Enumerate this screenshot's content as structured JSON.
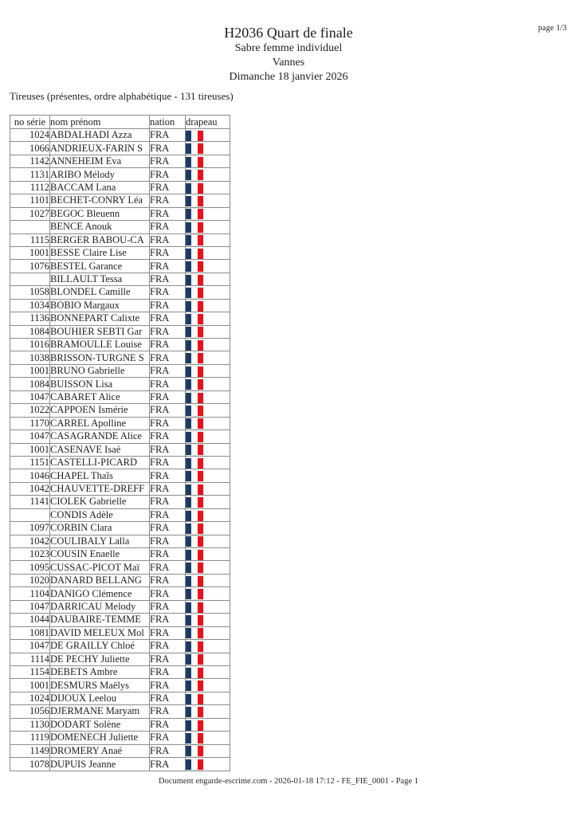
{
  "page": {
    "title": "H2036 Quart de finale",
    "subtitle_event": "Sabre femme individuel",
    "subtitle_location": "Vannes",
    "subtitle_date": "Dimanche 18 janvier 2026",
    "page_indicator": "page 1/3",
    "list_caption": "Tireuses (présentes, ordre alphabétique - 131 tireuses)",
    "footer": "Document engarde-escrime.com - 2026-01-18 17:12  - FE_FIE_0001 - Page 1"
  },
  "flag": {
    "label": "france-flag",
    "blue": "#1f3a60",
    "white": "#ffffff",
    "red": "#e0151f"
  },
  "table": {
    "headers": [
      "no série",
      "nom prénom",
      "nation",
      "drapeau"
    ],
    "rows": [
      {
        "serie": "1024",
        "name": "ABDALHADI Azza",
        "nation": "FRA"
      },
      {
        "serie": "1066",
        "name": "ANDRIEUX-FARIN S",
        "nation": "FRA"
      },
      {
        "serie": "1142",
        "name": "ANNEHEIM Eva",
        "nation": "FRA"
      },
      {
        "serie": "1131",
        "name": "ARIBO Mélody",
        "nation": "FRA"
      },
      {
        "serie": "1112",
        "name": "BACCAM Lana",
        "nation": "FRA"
      },
      {
        "serie": "1101",
        "name": "BECHET-CONRY Léa",
        "nation": "FRA"
      },
      {
        "serie": "1027",
        "name": "BEGOC Bleuenn",
        "nation": "FRA"
      },
      {
        "serie": "",
        "name": "BENCE Anouk",
        "nation": "FRA"
      },
      {
        "serie": "1115",
        "name": "BERGER BABOU-CA",
        "nation": "FRA"
      },
      {
        "serie": "1001",
        "name": "BESSE Claire Lise",
        "nation": "FRA"
      },
      {
        "serie": "1076",
        "name": "BESTEL Garance",
        "nation": "FRA"
      },
      {
        "serie": "",
        "name": "BILLAULT Tessa",
        "nation": "FRA"
      },
      {
        "serie": "1058",
        "name": "BLONDEL Camille",
        "nation": "FRA"
      },
      {
        "serie": "1034",
        "name": "BOBIO Margaux",
        "nation": "FRA"
      },
      {
        "serie": "1136",
        "name": "BONNEPART Calixte",
        "nation": "FRA"
      },
      {
        "serie": "1084",
        "name": "BOUHIER SEBTI Gar",
        "nation": "FRA"
      },
      {
        "serie": "1016",
        "name": "BRAMOULLE Louise",
        "nation": "FRA"
      },
      {
        "serie": "1038",
        "name": "BRISSON-TURGNE S",
        "nation": "FRA"
      },
      {
        "serie": "1001",
        "name": "BRUNO Gabrielle",
        "nation": "FRA"
      },
      {
        "serie": "1084",
        "name": "BUISSON Lisa",
        "nation": "FRA"
      },
      {
        "serie": "1047",
        "name": "CABARET Alice",
        "nation": "FRA"
      },
      {
        "serie": "1022",
        "name": "CAPPOEN Ismérie",
        "nation": "FRA"
      },
      {
        "serie": "1170",
        "name": "CARREL Apolline",
        "nation": "FRA"
      },
      {
        "serie": "1047",
        "name": "CASAGRANDE Alice",
        "nation": "FRA"
      },
      {
        "serie": "1001",
        "name": "CASENAVE Isaé",
        "nation": "FRA"
      },
      {
        "serie": "1151",
        "name": "CASTELLI-PICARD",
        "nation": "FRA"
      },
      {
        "serie": "1046",
        "name": "CHAPEL Thaîs",
        "nation": "FRA"
      },
      {
        "serie": "1042",
        "name": "CHAUVETTE-DREFF",
        "nation": "FRA"
      },
      {
        "serie": "1141",
        "name": "CIOLEK Gabrielle",
        "nation": "FRA"
      },
      {
        "serie": "",
        "name": "CONDIS Adèle",
        "nation": "FRA"
      },
      {
        "serie": "1097",
        "name": "CORBIN Clara",
        "nation": "FRA"
      },
      {
        "serie": "1042",
        "name": "COULIBALY Lalla",
        "nation": "FRA"
      },
      {
        "serie": "1023",
        "name": "COUSIN Enaelle",
        "nation": "FRA"
      },
      {
        "serie": "1095",
        "name": "CUSSAC-PICOT Maï",
        "nation": "FRA"
      },
      {
        "serie": "1020",
        "name": "DANARD BELLANG",
        "nation": "FRA"
      },
      {
        "serie": "1104",
        "name": "DANIGO Clémence",
        "nation": "FRA"
      },
      {
        "serie": "1047",
        "name": "DARRICAU Melody",
        "nation": "FRA"
      },
      {
        "serie": "1044",
        "name": "DAUBAIRE-TEMME",
        "nation": "FRA"
      },
      {
        "serie": "1081",
        "name": "DAVID MELEUX Mol",
        "nation": "FRA"
      },
      {
        "serie": "1047",
        "name": "DE GRAILLY Chloé",
        "nation": "FRA"
      },
      {
        "serie": "1114",
        "name": "DE PECHY Juliette",
        "nation": "FRA"
      },
      {
        "serie": "1154",
        "name": "DEBETS Ambre",
        "nation": "FRA"
      },
      {
        "serie": "1001",
        "name": "DESMURS Maëlys",
        "nation": "FRA"
      },
      {
        "serie": "1024",
        "name": "DIJOUX Leelou",
        "nation": "FRA"
      },
      {
        "serie": "1056",
        "name": "DJERMANE Maryam",
        "nation": "FRA"
      },
      {
        "serie": "1130",
        "name": "DODART Solène",
        "nation": "FRA"
      },
      {
        "serie": "1119",
        "name": "DOMENECH Juliette",
        "nation": "FRA"
      },
      {
        "serie": "1149",
        "name": "DROMERY Anaé",
        "nation": "FRA"
      },
      {
        "serie": "1078",
        "name": "DUPUIS Jeanne",
        "nation": "FRA"
      }
    ]
  }
}
